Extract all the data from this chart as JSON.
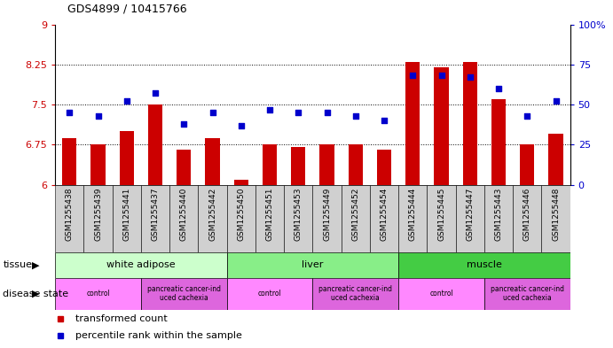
{
  "title": "GDS4899 / 10415766",
  "samples": [
    "GSM1255438",
    "GSM1255439",
    "GSM1255441",
    "GSM1255437",
    "GSM1255440",
    "GSM1255442",
    "GSM1255450",
    "GSM1255451",
    "GSM1255453",
    "GSM1255449",
    "GSM1255452",
    "GSM1255454",
    "GSM1255444",
    "GSM1255445",
    "GSM1255447",
    "GSM1255443",
    "GSM1255446",
    "GSM1255448"
  ],
  "transformed_count": [
    6.88,
    6.75,
    7.0,
    7.5,
    6.65,
    6.88,
    6.1,
    6.75,
    6.7,
    6.75,
    6.75,
    6.65,
    8.3,
    8.2,
    8.3,
    7.6,
    6.75,
    6.95
  ],
  "percentile_rank": [
    45,
    43,
    52,
    57,
    38,
    45,
    37,
    47,
    45,
    45,
    43,
    40,
    68,
    68,
    67,
    60,
    43,
    52
  ],
  "ylim_left": [
    6,
    9
  ],
  "ylim_right": [
    0,
    100
  ],
  "yticks_left": [
    6,
    6.75,
    7.5,
    8.25,
    9
  ],
  "yticks_right": [
    0,
    25,
    50,
    75,
    100
  ],
  "ytick_labels_left": [
    "6",
    "6.75",
    "7.5",
    "8.25",
    "9"
  ],
  "ytick_labels_right": [
    "0",
    "25",
    "50",
    "75",
    "100%"
  ],
  "hlines": [
    6.75,
    7.5,
    8.25
  ],
  "bar_color": "#cc0000",
  "dot_color": "#0000cc",
  "tissue_groups": [
    {
      "label": "white adipose",
      "start": 0,
      "end": 6,
      "color": "#ccffcc"
    },
    {
      "label": "liver",
      "start": 6,
      "end": 12,
      "color": "#88ee88"
    },
    {
      "label": "muscle",
      "start": 12,
      "end": 18,
      "color": "#44cc44"
    }
  ],
  "disease_groups": [
    {
      "label": "control",
      "start": 0,
      "end": 3,
      "color": "#ff88ff"
    },
    {
      "label": "pancreatic cancer-ind\nuced cachexia",
      "start": 3,
      "end": 6,
      "color": "#dd66dd"
    },
    {
      "label": "control",
      "start": 6,
      "end": 9,
      "color": "#ff88ff"
    },
    {
      "label": "pancreatic cancer-ind\nuced cachexia",
      "start": 9,
      "end": 12,
      "color": "#dd66dd"
    },
    {
      "label": "control",
      "start": 12,
      "end": 15,
      "color": "#ff88ff"
    },
    {
      "label": "pancreatic cancer-ind\nuced cachexia",
      "start": 15,
      "end": 18,
      "color": "#dd66dd"
    }
  ],
  "legend_items": [
    {
      "color": "#cc0000",
      "label": "transformed count"
    },
    {
      "color": "#0000cc",
      "label": "percentile rank within the sample"
    }
  ],
  "left_axis_color": "#cc0000",
  "right_axis_color": "#0000cc",
  "background_color": "#ffffff",
  "plot_bg_color": "#ffffff",
  "xticklabel_bg": "#d0d0d0"
}
